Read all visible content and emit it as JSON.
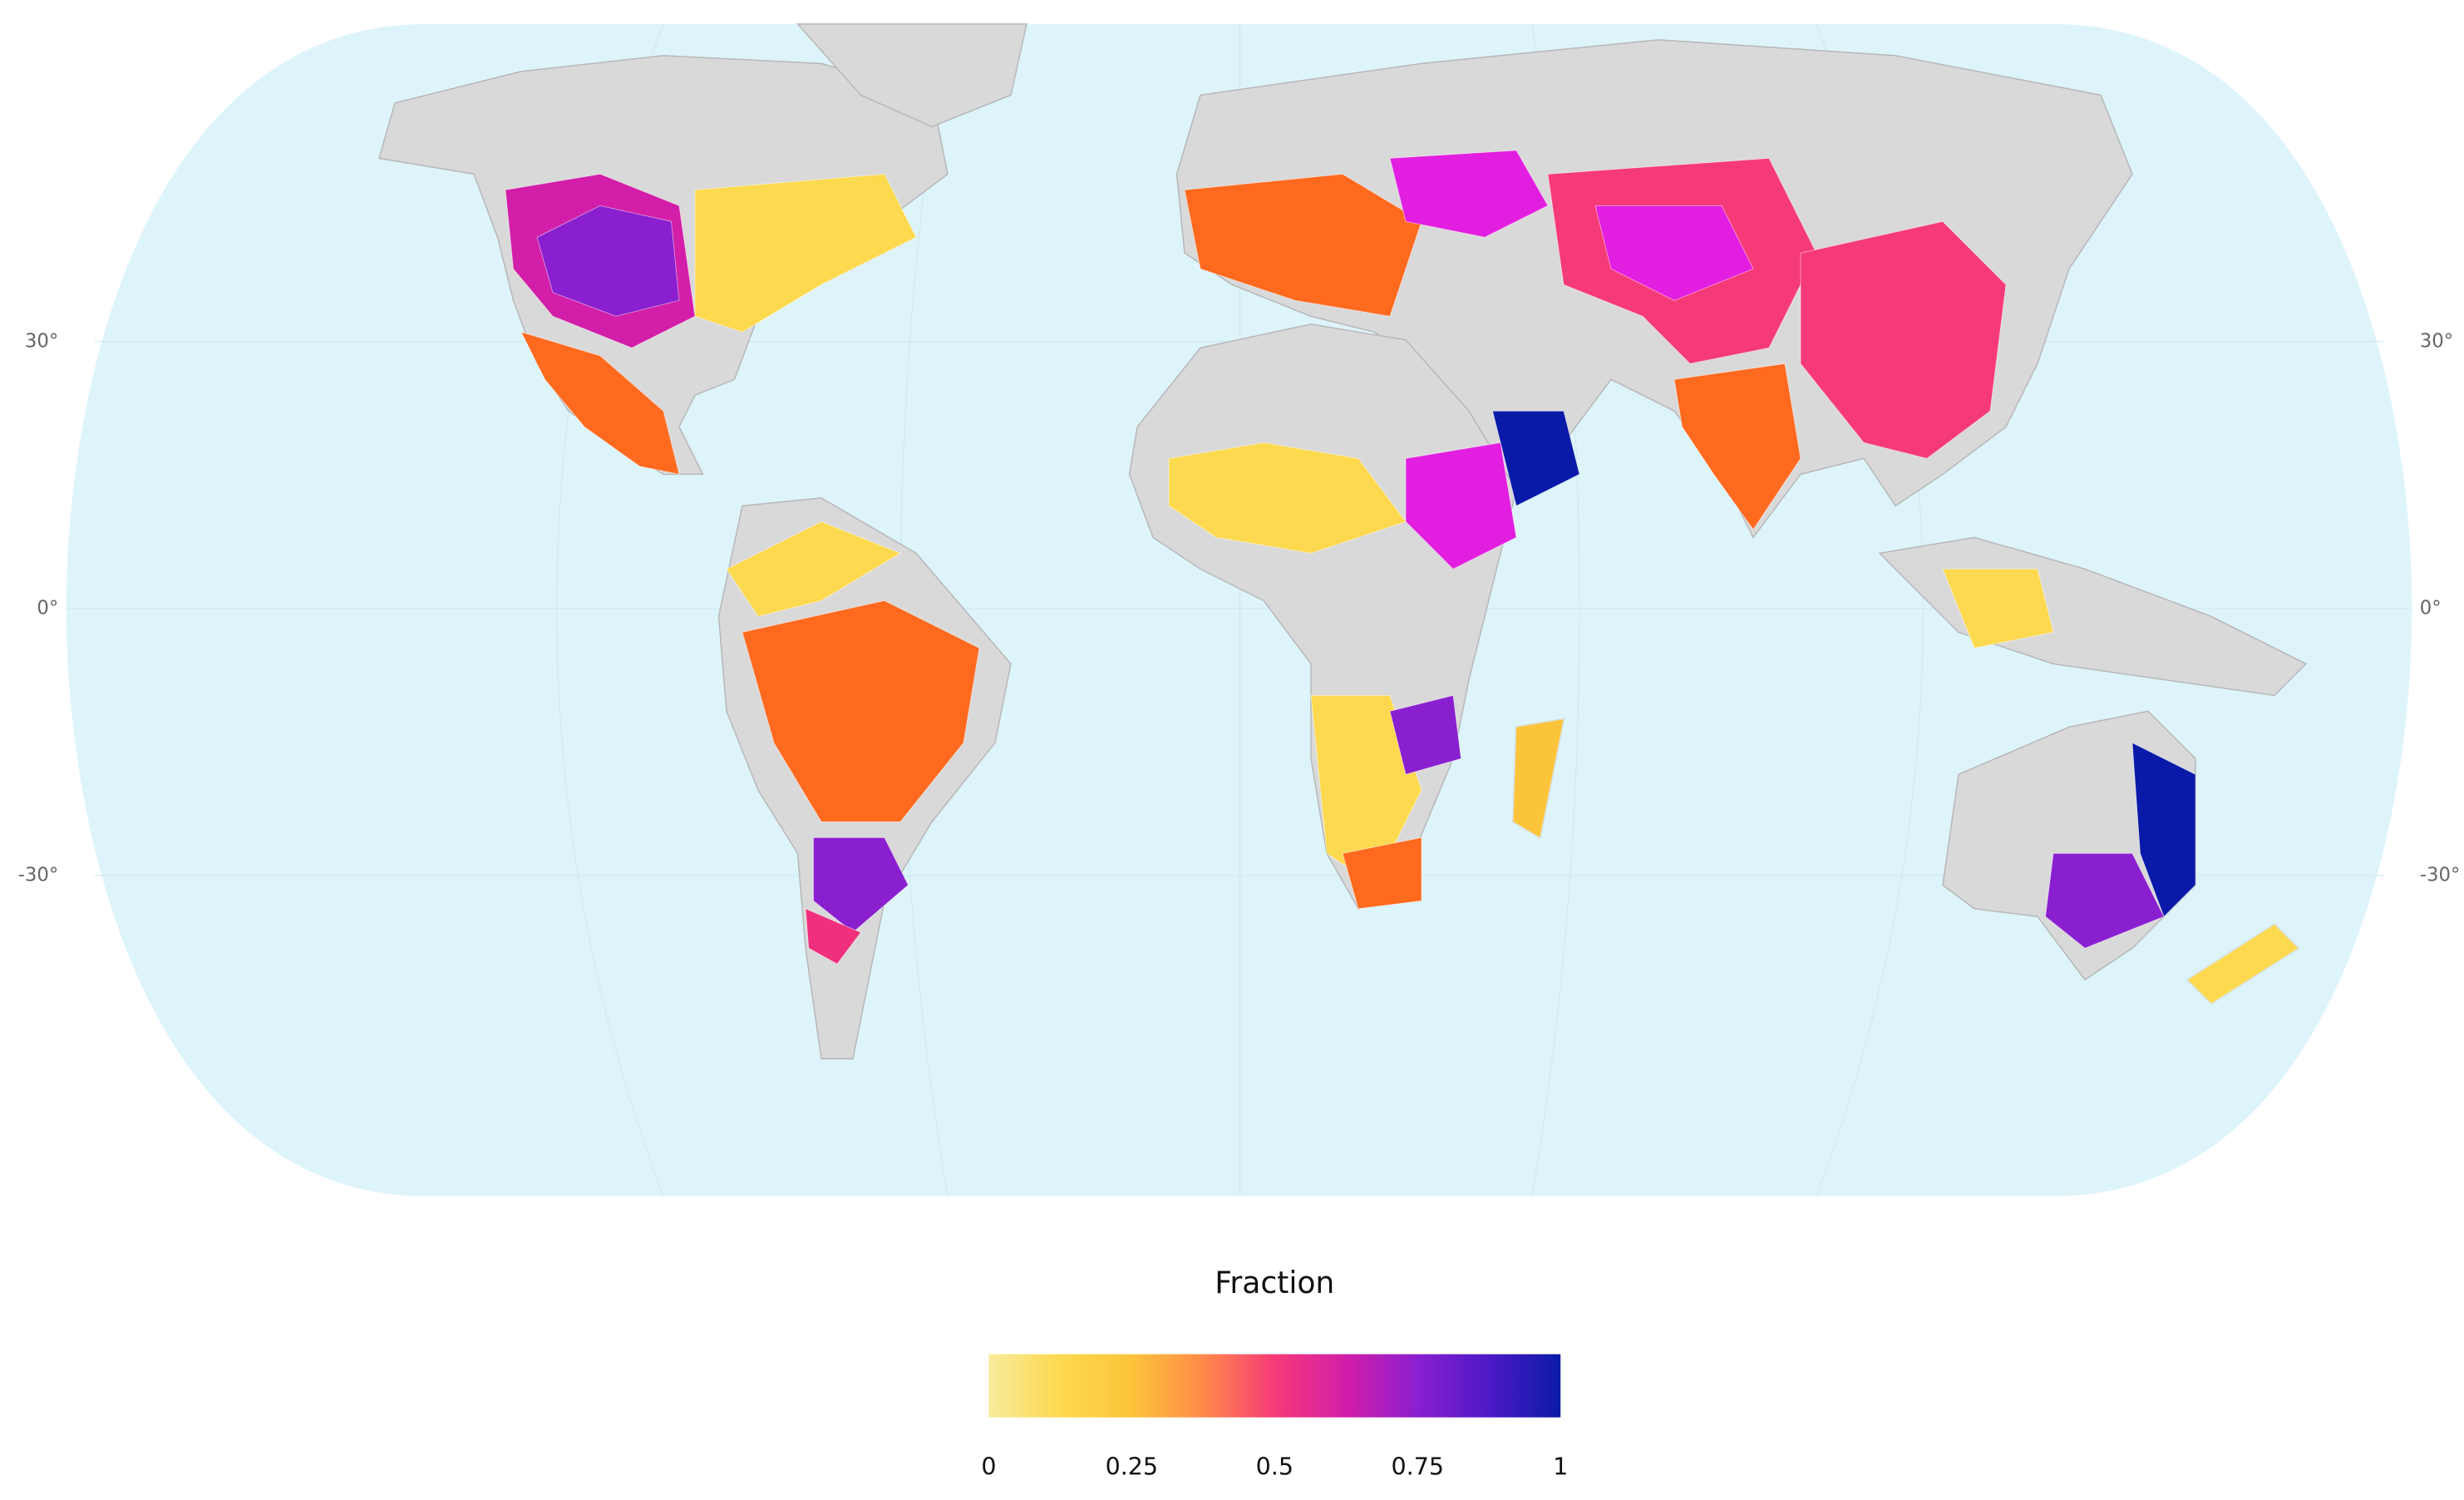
{
  "map": {
    "lat_labels": [
      {
        "value": 30,
        "label": "30°"
      },
      {
        "value": 0,
        "label": "0°"
      },
      {
        "value": -30,
        "label": "-30°"
      }
    ]
  },
  "legend": {
    "title": "Fraction",
    "range": [
      0,
      1
    ],
    "ticks": [
      0,
      0.25,
      0.5,
      0.75,
      1
    ],
    "colors": [
      "#f8eb9c",
      "#fdd94f",
      "#fcc43a",
      "#ff8a4a",
      "#f63a78",
      "#d21ea8",
      "#8a1fd0",
      "#4d19c6",
      "#0a1aa8"
    ]
  }
}
